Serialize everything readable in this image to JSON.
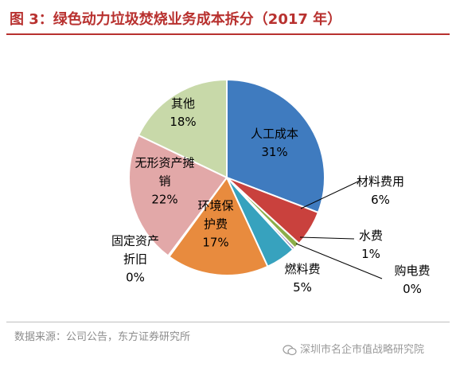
{
  "title": "图 3：绿色动力垃圾焚烧业务成本拆分（2017 年）",
  "colors": {
    "title": "#b8312f",
    "leader_line": "#000000"
  },
  "chart_data": {
    "type": "pie",
    "start_angle_deg": 0,
    "direction": "clockwise",
    "slices": [
      {
        "label": [
          "人工成本"
        ],
        "value_label": "31%",
        "value": 31.0,
        "color": "#3f7bbf"
      },
      {
        "label": [
          "材料费用"
        ],
        "value_label": "6%",
        "value": 6.0,
        "color": "#c9413d"
      },
      {
        "label": [
          "水费"
        ],
        "value_label": "1%",
        "value": 1.0,
        "color": "#8cae49"
      },
      {
        "label": [
          "购电费"
        ],
        "value_label": "0%",
        "value": 0.4,
        "color": "#7a5aa0"
      },
      {
        "label": [
          "燃料费"
        ],
        "value_label": "5%",
        "value": 5.0,
        "color": "#37a2be"
      },
      {
        "label": [
          "环境保",
          "护费"
        ],
        "value_label": "17%",
        "value": 17.0,
        "color": "#e88b3e"
      },
      {
        "label": [
          "固定资产",
          "折旧"
        ],
        "value_label": "0%",
        "value": 0.2,
        "color": "#2b4c7e"
      },
      {
        "label": [
          "无形资产摊",
          "销"
        ],
        "value_label": "22%",
        "value": 22.0,
        "color": "#e2a8a8"
      },
      {
        "label": [
          "其他"
        ],
        "value_label": "18%",
        "value": 18.0,
        "color": "#c8d9a9"
      }
    ]
  },
  "footer": {
    "source": "数据来源：公司公告，东方证券研究所",
    "watermark": "深圳市名企市值战略研究院"
  }
}
